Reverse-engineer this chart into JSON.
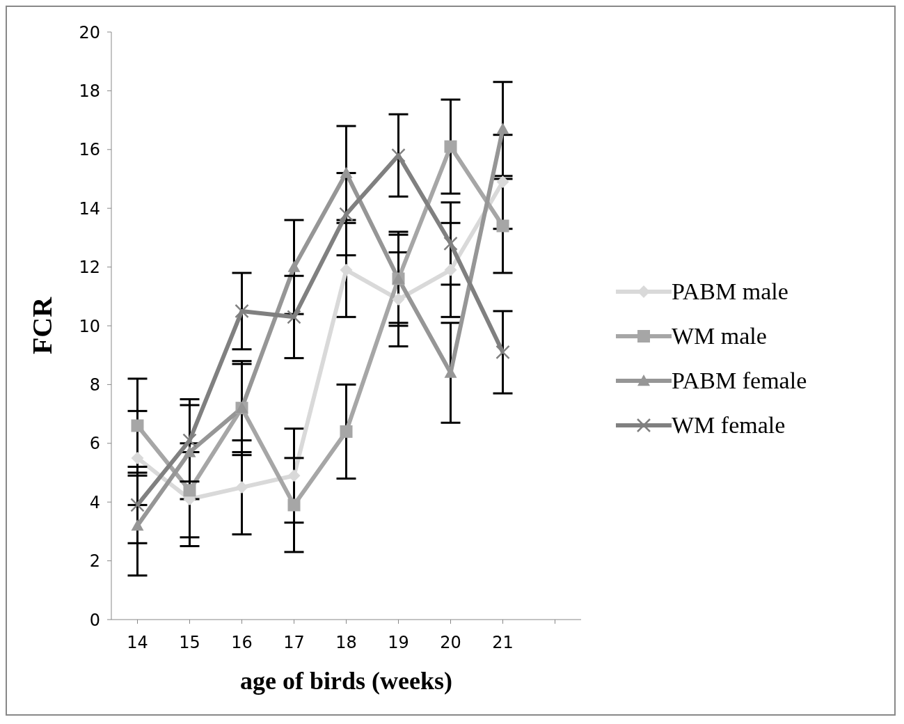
{
  "chart_data": {
    "type": "line",
    "xlabel": "age of birds (weeks)",
    "ylabel": "FCR",
    "categories": [
      "14",
      "15",
      "16",
      "17",
      "18",
      "19",
      "20",
      "21",
      null
    ],
    "ylim": [
      0,
      20
    ],
    "yticks": [
      0,
      2,
      4,
      6,
      8,
      10,
      12,
      14,
      16,
      18,
      20
    ],
    "grid": false,
    "legend": "right",
    "series": [
      {
        "name": "PABM male",
        "color": "#d9d9d9",
        "marker": "diamond",
        "values": [
          5.5,
          4.1,
          4.5,
          4.9,
          11.9,
          10.9,
          11.9,
          14.9,
          null
        ],
        "errors": [
          1.6,
          1.6,
          1.6,
          1.6,
          1.6,
          1.6,
          1.6,
          1.6,
          null
        ]
      },
      {
        "name": "WM male",
        "color": "#a6a6a6",
        "marker": "square",
        "values": [
          6.6,
          4.4,
          7.2,
          3.9,
          6.4,
          11.6,
          16.1,
          13.4,
          null
        ],
        "errors": [
          1.6,
          1.6,
          1.6,
          1.6,
          1.6,
          1.6,
          1.6,
          1.6,
          null
        ]
      },
      {
        "name": "PABM female",
        "color": "#969696",
        "marker": "triangle",
        "values": [
          3.2,
          5.7,
          7.2,
          12.0,
          15.2,
          11.6,
          8.4,
          16.7,
          null
        ],
        "errors": [
          1.7,
          1.6,
          1.5,
          1.6,
          1.6,
          1.5,
          1.7,
          1.6,
          null
        ]
      },
      {
        "name": "WM female",
        "color": "#808080",
        "marker": "cross",
        "values": [
          3.9,
          6.1,
          10.5,
          10.3,
          13.8,
          15.8,
          12.8,
          9.1,
          null
        ],
        "errors": [
          1.3,
          1.4,
          1.3,
          1.4,
          1.4,
          1.4,
          1.4,
          1.4,
          null
        ]
      }
    ]
  }
}
